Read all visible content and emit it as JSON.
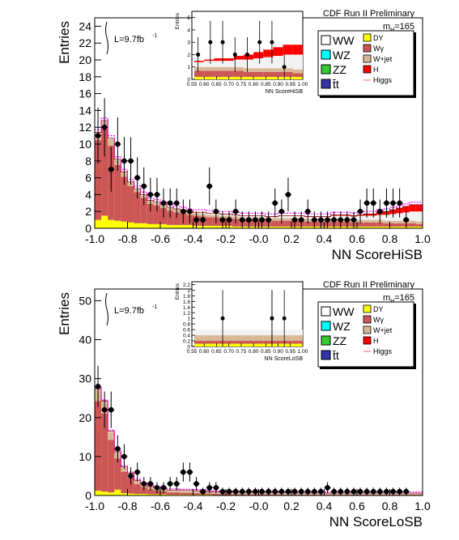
{
  "chart_data": [
    {
      "type": "histogram",
      "title": "CDF Run II Preliminary",
      "mass_label": "m",
      "mass_sub": "H",
      "mass_value": "=165",
      "lumi_label": "L=9.7fb",
      "lumi_exp": "-1",
      "xlabel": "NN ScoreHiSB",
      "ylabel": "Entries",
      "xlim": [
        -1.0,
        1.0
      ],
      "ylim": [
        0,
        25
      ],
      "xticks": [
        "-1.0",
        "-0.8",
        "-0.6",
        "-0.4",
        "-0.2",
        "-0.0",
        "0.2",
        "0.4",
        "0.6",
        "0.8",
        "1.0"
      ],
      "xtick_values": [
        -1.0,
        -0.8,
        -0.6,
        -0.4,
        -0.2,
        0.0,
        0.2,
        0.4,
        0.6,
        0.8,
        1.0
      ],
      "yticks": [
        0,
        2,
        4,
        6,
        8,
        10,
        12,
        14,
        16,
        18,
        20,
        22,
        24
      ],
      "legend_left": [
        "WW",
        "WZ",
        "ZZ",
        "t̄t"
      ],
      "legend_right": [
        "DY",
        "Wγ",
        "W+jet",
        "H",
        "Higgs"
      ],
      "colors": {
        "wjet_red": "#cc5555",
        "wjet": "#d8b896",
        "dy": "#ffff00",
        "ww": "#f2f2f2",
        "h": "#ff0000",
        "higgs": "#ff00ff",
        "data": "#000000"
      },
      "bin_edges_start": -1.0,
      "bin_width": 0.04,
      "stack": {
        "dy": [
          1.0,
          1.5,
          1.0,
          0.9,
          0.8,
          0.7,
          0.6,
          0.6,
          0.5,
          0.5,
          0.5,
          0.4,
          0.4,
          0.4,
          0.4,
          0.3,
          0.3,
          0.3,
          0.3,
          0.3,
          0.3,
          0.2,
          0.2,
          0.2,
          0.2,
          0.2,
          0.2,
          0.2,
          0.2,
          0.2,
          0.2,
          0.2,
          0.2,
          0.2,
          0.2,
          0.2,
          0.2,
          0.2,
          0.2,
          0.2,
          0.2,
          0.2,
          0.2,
          0.2,
          0.2,
          0.2,
          0.2,
          0.2,
          0.2,
          0.2
        ],
        "wjet_red": [
          9.5,
          10.3,
          8.8,
          6.6,
          5.3,
          4.3,
          3.7,
          3.0,
          2.4,
          2.2,
          1.9,
          1.7,
          1.5,
          1.4,
          1.2,
          1.2,
          1.1,
          1.0,
          1.0,
          0.9,
          0.9,
          0.9,
          0.8,
          0.8,
          0.8,
          0.8,
          0.7,
          0.7,
          0.7,
          0.7,
          0.7,
          0.7,
          0.6,
          0.6,
          0.6,
          0.6,
          0.6,
          0.6,
          0.6,
          0.5,
          0.5,
          0.5,
          0.5,
          0.5,
          0.4,
          0.4,
          0.4,
          0.4,
          0.4,
          0.3
        ],
        "wjet": [
          0.8,
          0.9,
          0.8,
          0.6,
          0.5,
          0.4,
          0.3,
          0.3,
          0.3,
          0.3,
          0.3,
          0.3,
          0.3,
          0.3,
          0.3,
          0.3,
          0.3,
          0.3,
          0.3,
          0.3,
          0.3,
          0.3,
          0.3,
          0.3,
          0.3,
          0.3,
          0.3,
          0.3,
          0.3,
          0.3,
          0.3,
          0.3,
          0.3,
          0.3,
          0.3,
          0.3,
          0.3,
          0.3,
          0.3,
          0.3,
          0.3,
          0.3,
          0.3,
          0.3,
          0.3,
          0.3,
          0.3,
          0.3,
          0.3,
          0.3
        ],
        "ww": [
          0.1,
          0.1,
          0.1,
          0.1,
          0.1,
          0.1,
          0.1,
          0.1,
          0.1,
          0.1,
          0.1,
          0.1,
          0.1,
          0.1,
          0.1,
          0.1,
          0.2,
          0.2,
          0.2,
          0.2,
          0.2,
          0.2,
          0.2,
          0.2,
          0.2,
          0.2,
          0.2,
          0.2,
          0.3,
          0.3,
          0.3,
          0.3,
          0.3,
          0.3,
          0.3,
          0.3,
          0.4,
          0.4,
          0.4,
          0.4,
          0.5,
          0.5,
          0.5,
          0.6,
          0.7,
          0.8,
          0.9,
          1.0,
          1.1,
          1.2
        ],
        "h": [
          0,
          0,
          0,
          0,
          0,
          0,
          0,
          0,
          0,
          0,
          0,
          0,
          0,
          0,
          0,
          0,
          0,
          0,
          0,
          0,
          0,
          0,
          0,
          0,
          0,
          0,
          0,
          0,
          0,
          0,
          0,
          0,
          0,
          0,
          0,
          0,
          0.1,
          0.1,
          0.1,
          0.1,
          0.1,
          0.2,
          0.2,
          0.3,
          0.4,
          0.5,
          0.6,
          0.7,
          0.8,
          0.8
        ]
      },
      "data_x": [
        -0.98,
        -0.94,
        -0.9,
        -0.86,
        -0.82,
        -0.78,
        -0.74,
        -0.7,
        -0.66,
        -0.62,
        -0.58,
        -0.54,
        -0.5,
        -0.46,
        -0.42,
        -0.38,
        -0.34,
        -0.3,
        -0.26,
        -0.22,
        -0.18,
        -0.14,
        -0.1,
        -0.06,
        -0.02,
        0.02,
        0.06,
        0.1,
        0.14,
        0.18,
        0.22,
        0.26,
        0.3,
        0.34,
        0.38,
        0.42,
        0.46,
        0.5,
        0.54,
        0.58,
        0.62,
        0.66,
        0.7,
        0.74,
        0.78,
        0.82,
        0.86,
        0.9
      ],
      "data_y": [
        11,
        12,
        7,
        10,
        8,
        8,
        6,
        5,
        4,
        4,
        3,
        3,
        3,
        2,
        2,
        1,
        1,
        5,
        2,
        1,
        1,
        2,
        1,
        1,
        1,
        1,
        1,
        3,
        2,
        4,
        1,
        1,
        2,
        1,
        1,
        1,
        1,
        1,
        1,
        1,
        2,
        3,
        3,
        2,
        3,
        3,
        3,
        1
      ],
      "inset": {
        "xlabel": "NN ScoreHiSB",
        "ylabel": "Entries",
        "xlim": [
          0.55,
          1.0
        ],
        "ylim": [
          0,
          5.5
        ],
        "xticks": [
          "0.55",
          "0.60",
          "0.65",
          "0.70",
          "0.75",
          "0.80",
          "0.85",
          "0.90",
          "0.95",
          "1.00"
        ],
        "xtick_values": [
          0.55,
          0.6,
          0.65,
          0.7,
          0.75,
          0.8,
          0.85,
          0.9,
          0.95,
          1.0
        ],
        "yticks": [
          0,
          1,
          2,
          3,
          4,
          5
        ],
        "data_x": [
          0.575,
          0.625,
          0.675,
          0.725,
          0.775,
          0.825,
          0.875,
          0.925
        ],
        "data_y": [
          2,
          3,
          3,
          2,
          2,
          3,
          3,
          1
        ]
      }
    },
    {
      "type": "histogram",
      "title": "CDF Run II Preliminary",
      "mass_label": "m",
      "mass_sub": "H",
      "mass_value": "=165",
      "lumi_label": "L=9.7fb",
      "lumi_exp": "-1",
      "xlabel": "NN ScoreLoSB",
      "ylabel": "Entries",
      "xlim": [
        -1.0,
        1.0
      ],
      "ylim": [
        0,
        53
      ],
      "xticks": [
        "-1.0",
        "-0.8",
        "-0.6",
        "-0.4",
        "-0.2",
        "-0.0",
        "0.2",
        "0.4",
        "0.6",
        "0.8",
        "1.0"
      ],
      "xtick_values": [
        -1.0,
        -0.8,
        -0.6,
        -0.4,
        -0.2,
        0.0,
        0.2,
        0.4,
        0.6,
        0.8,
        1.0
      ],
      "yticks": [
        0,
        10,
        20,
        30,
        40,
        50
      ],
      "legend_left": [
        "WW",
        "WZ",
        "ZZ",
        "t̄t"
      ],
      "legend_right": [
        "DY",
        "Wγ",
        "W+jet",
        "H",
        "Higgs"
      ],
      "colors": {
        "wjet_red": "#cc5555",
        "wjet": "#d8b896",
        "dy": "#ffff00",
        "ww": "#f2f2f2",
        "h": "#ff0000",
        "higgs": "#ff00ff",
        "data": "#000000"
      },
      "bin_edges_start": -1.0,
      "bin_width": 0.04,
      "stack": {
        "dy": [
          1.2,
          1.0,
          0.8,
          1.5,
          0.6,
          0.5,
          0.4,
          0.4,
          0.3,
          0.3,
          0.3,
          0.2,
          0.2,
          0.2,
          0.2,
          0.2,
          0.2,
          0.2,
          0.1,
          0.1,
          0.1,
          0.1,
          0.1,
          0.1,
          0.1,
          0.1,
          0.1,
          0.1,
          0.1,
          0.1,
          0.1,
          0.1,
          0.1,
          0.1,
          0.1,
          0.1,
          0.1,
          0.1,
          0.1,
          0.1,
          0.1,
          0.1,
          0.1,
          0.1,
          0.1,
          0.1,
          0.1,
          0.1,
          0.1,
          0.1
        ],
        "wjet_red": [
          23.0,
          20.0,
          13.5,
          8.0,
          5.5,
          4.0,
          2.5,
          1.8,
          1.3,
          1.0,
          0.8,
          0.6,
          0.6,
          0.5,
          0.5,
          0.4,
          0.4,
          0.3,
          0.3,
          0.3,
          0.3,
          0.2,
          0.2,
          0.2,
          0.2,
          0.2,
          0.2,
          0.2,
          0.1,
          0.1,
          0.1,
          0.1,
          0.1,
          0.1,
          0.1,
          0.1,
          0.1,
          0.1,
          0.1,
          0.1,
          0.1,
          0.1,
          0.1,
          0.1,
          0.1,
          0.1,
          0.1,
          0.1,
          0.1,
          0.1
        ],
        "wjet": [
          3.0,
          3.0,
          2.0,
          1.5,
          1.0,
          1.0,
          0.8,
          0.6,
          0.5,
          0.5,
          0.5,
          0.4,
          0.4,
          0.4,
          0.4,
          0.4,
          0.4,
          0.3,
          0.3,
          0.3,
          0.3,
          0.3,
          0.3,
          0.3,
          0.3,
          0.3,
          0.3,
          0.3,
          0.3,
          0.3,
          0.2,
          0.2,
          0.2,
          0.2,
          0.2,
          0.2,
          0.2,
          0.2,
          0.2,
          0.2,
          0.2,
          0.2,
          0.2,
          0.2,
          0.2,
          0.2,
          0.2,
          0.2,
          0.2,
          0.2
        ],
        "ww": [
          0.2,
          0.2,
          0.2,
          0.2,
          0.2,
          0.2,
          0.2,
          0.2,
          0.2,
          0.2,
          0.2,
          0.2,
          0.2,
          0.2,
          0.2,
          0.2,
          0.2,
          0.2,
          0.2,
          0.2,
          0.2,
          0.2,
          0.2,
          0.2,
          0.2,
          0.2,
          0.2,
          0.2,
          0.2,
          0.2,
          0.2,
          0.2,
          0.2,
          0.2,
          0.2,
          0.2,
          0.2,
          0.2,
          0.2,
          0.2,
          0.2,
          0.2,
          0.2,
          0.2,
          0.2,
          0.2,
          0.2,
          0.2,
          0.2,
          0.2
        ],
        "h": [
          0,
          0,
          0,
          0,
          0,
          0,
          0,
          0,
          0,
          0,
          0,
          0,
          0,
          0,
          0,
          0,
          0,
          0,
          0,
          0,
          0,
          0,
          0,
          0,
          0,
          0,
          0,
          0,
          0,
          0,
          0,
          0,
          0,
          0,
          0,
          0,
          0,
          0,
          0,
          0,
          0,
          0,
          0,
          0,
          0,
          0,
          0,
          0,
          0,
          0
        ]
      },
      "data_x": [
        -0.98,
        -0.94,
        -0.9,
        -0.86,
        -0.82,
        -0.78,
        -0.74,
        -0.7,
        -0.66,
        -0.62,
        -0.58,
        -0.54,
        -0.5,
        -0.46,
        -0.42,
        -0.38,
        -0.34,
        -0.3,
        -0.26,
        -0.22,
        -0.18,
        -0.14,
        -0.1,
        -0.06,
        -0.02,
        0.02,
        0.06,
        0.1,
        0.14,
        0.18,
        0.22,
        0.26,
        0.3,
        0.34,
        0.38,
        0.42,
        0.46,
        0.5,
        0.54,
        0.58,
        0.62,
        0.66,
        0.7,
        0.74,
        0.78,
        0.82,
        0.86,
        0.9
      ],
      "data_y": [
        28,
        22,
        22,
        12,
        10,
        5,
        6,
        3,
        3,
        2,
        2,
        3,
        3,
        6,
        6,
        3,
        1,
        2,
        2,
        1,
        1,
        1,
        1,
        1,
        1,
        1,
        1,
        1,
        1,
        1,
        1,
        1,
        1,
        1,
        1,
        2,
        1,
        1,
        1,
        1,
        1,
        1,
        1,
        1,
        1,
        1,
        1,
        1
      ],
      "inset": {
        "xlabel": "NN ScoreLoSB",
        "ylabel": "Entries",
        "xlim": [
          0.55,
          1.0
        ],
        "ylim": [
          0,
          2.3
        ],
        "xticks": [
          "0.55",
          "0.60",
          "0.65",
          "0.70",
          "0.75",
          "0.80",
          "0.85",
          "0.90",
          "0.95",
          "1.00"
        ],
        "xtick_values": [
          0.55,
          0.6,
          0.65,
          0.7,
          0.75,
          0.8,
          0.85,
          0.9,
          0.95,
          1.0
        ],
        "yticks": [
          0,
          0.2,
          0.4,
          0.6,
          0.8,
          1.0,
          1.2,
          1.4,
          1.6,
          1.8,
          2.0,
          2.2
        ],
        "data_x": [
          0.675,
          0.875,
          0.875,
          0.925
        ],
        "data_y": [
          1,
          1,
          1,
          1
        ]
      }
    }
  ]
}
